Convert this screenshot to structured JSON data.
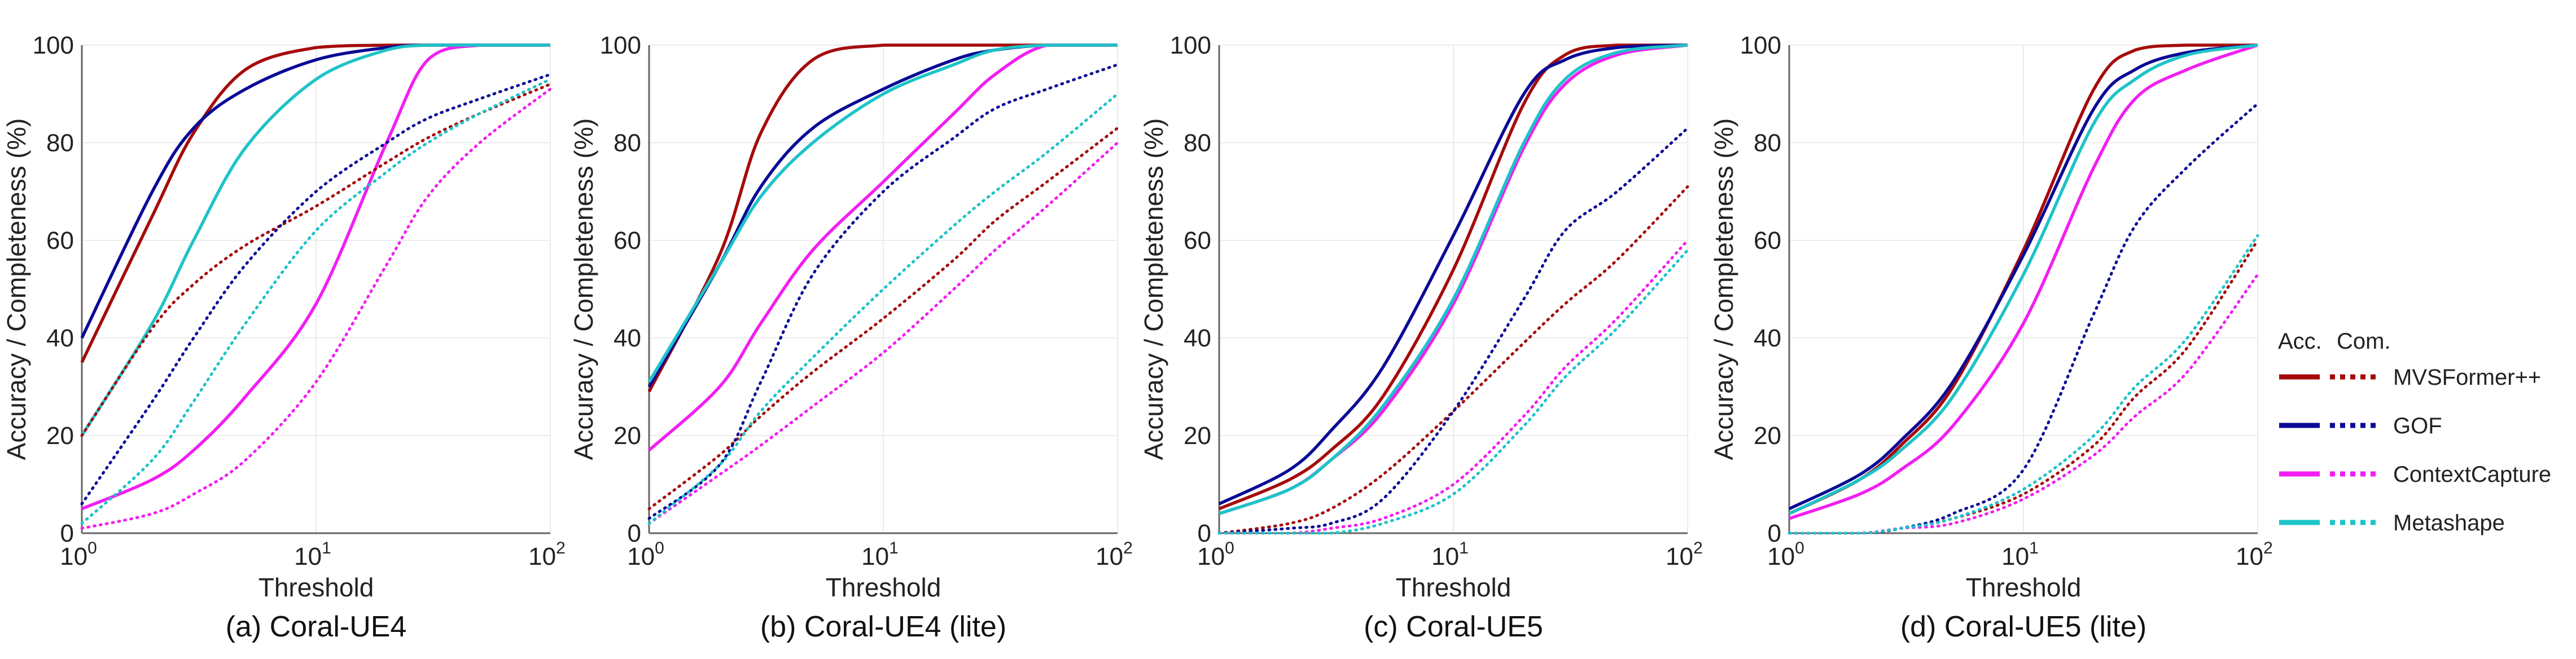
{
  "legend": {
    "header_acc": "Acc.",
    "header_com": "Com.",
    "entries": [
      "MVSFormer++",
      "GOF",
      "ContextCapture",
      "Metashape"
    ]
  },
  "colors": {
    "MVSFormer++": "#a50b0b",
    "GOF": "#0a0a96",
    "ContextCapture": "#f21ef2",
    "Metashape": "#1ec3c8",
    "grid": "#ececec",
    "axis": "#666666"
  },
  "chart_data": [
    {
      "type": "line",
      "title": "(a) Coral-UE4",
      "xlabel": "Threshold",
      "ylabel": "Accuracy / Completeness (%)",
      "xscale": "log",
      "xlim": [
        1,
        100
      ],
      "ylim": [
        0,
        100
      ],
      "xticks": [
        {
          "base": "10",
          "exp": "0"
        },
        {
          "base": "10",
          "exp": "1"
        },
        {
          "base": "10",
          "exp": "2"
        }
      ],
      "yticks": [
        "0",
        "20",
        "40",
        "60",
        "80",
        "100"
      ],
      "x": [
        1,
        2,
        3,
        5,
        10,
        20,
        30,
        50,
        100
      ],
      "series": [
        {
          "name": "MVSFormer++",
          "metric": "Acc.",
          "values": [
            35,
            65,
            82,
            95,
            99.5,
            100,
            100,
            100,
            100
          ]
        },
        {
          "name": "GOF",
          "metric": "Acc.",
          "values": [
            40,
            70,
            83,
            91,
            97,
            99.5,
            100,
            100,
            100
          ]
        },
        {
          "name": "ContextCapture",
          "metric": "Acc.",
          "values": [
            5,
            11,
            17,
            28,
            47,
            80,
            97,
            100,
            100
          ]
        },
        {
          "name": "Metashape",
          "metric": "Acc.",
          "values": [
            20,
            43,
            60,
            79,
            93,
            99,
            100,
            100,
            100
          ]
        },
        {
          "name": "MVSFormer++",
          "metric": "Com.",
          "values": [
            20,
            42,
            51,
            59,
            67,
            76,
            81,
            86,
            92
          ]
        },
        {
          "name": "GOF",
          "metric": "Com.",
          "values": [
            6,
            27,
            40,
            55,
            70,
            80,
            85,
            89,
            94
          ]
        },
        {
          "name": "ContextCapture",
          "metric": "Com.",
          "values": [
            1,
            4,
            8,
            15,
            31,
            55,
            69,
            80,
            91
          ]
        },
        {
          "name": "Metashape",
          "metric": "Com.",
          "values": [
            2,
            15,
            27,
            43,
            62,
            74,
            80,
            86,
            93
          ]
        }
      ]
    },
    {
      "type": "line",
      "title": "(b) Coral-UE4 (lite)",
      "xlabel": "Threshold",
      "ylabel": "Accuracy / Completeness (%)",
      "xscale": "log",
      "xlim": [
        1,
        100
      ],
      "ylim": [
        0,
        100
      ],
      "xticks": [
        {
          "base": "10",
          "exp": "0"
        },
        {
          "base": "10",
          "exp": "1"
        },
        {
          "base": "10",
          "exp": "2"
        }
      ],
      "yticks": [
        "0",
        "20",
        "40",
        "60",
        "80",
        "100"
      ],
      "x": [
        1,
        2,
        3,
        5,
        10,
        20,
        30,
        50,
        100
      ],
      "series": [
        {
          "name": "MVSFormer++",
          "metric": "Acc.",
          "values": [
            29,
            57,
            82,
            97,
            100,
            100,
            100,
            100,
            100
          ]
        },
        {
          "name": "GOF",
          "metric": "Acc.",
          "values": [
            30,
            55,
            71,
            83,
            91,
            97,
            99,
            100,
            100
          ]
        },
        {
          "name": "ContextCapture",
          "metric": "Acc.",
          "values": [
            17,
            30,
            43,
            58,
            72,
            86,
            94,
            100,
            100
          ]
        },
        {
          "name": "Metashape",
          "metric": "Acc.",
          "values": [
            31,
            55,
            69,
            80,
            90,
            96,
            99,
            100,
            100
          ]
        },
        {
          "name": "MVSFormer++",
          "metric": "Com.",
          "values": [
            5,
            16,
            24,
            33,
            44,
            56,
            64,
            72,
            83
          ]
        },
        {
          "name": "GOF",
          "metric": "Com.",
          "values": [
            3,
            14,
            31,
            53,
            70,
            81,
            87,
            91,
            96
          ]
        },
        {
          "name": "ContextCapture",
          "metric": "Com.",
          "values": [
            2,
            12,
            18,
            26,
            37,
            50,
            58,
            67,
            80
          ]
        },
        {
          "name": "Metashape",
          "metric": "Com.",
          "values": [
            2,
            14,
            25,
            36,
            50,
            63,
            70,
            78,
            90
          ]
        }
      ]
    },
    {
      "type": "line",
      "title": "(c) Coral-UE5",
      "xlabel": "Threshold",
      "ylabel": "Accuracy / Completeness (%)",
      "xscale": "log",
      "xlim": [
        1,
        100
      ],
      "ylim": [
        0,
        100
      ],
      "xticks": [
        {
          "base": "10",
          "exp": "0"
        },
        {
          "base": "10",
          "exp": "1"
        },
        {
          "base": "10",
          "exp": "2"
        }
      ],
      "yticks": [
        "0",
        "20",
        "40",
        "60",
        "80",
        "100"
      ],
      "x": [
        1,
        2,
        3,
        5,
        10,
        20,
        30,
        50,
        100
      ],
      "series": [
        {
          "name": "MVSFormer++",
          "metric": "Acc.",
          "values": [
            5,
            11,
            17,
            28,
            54,
            88,
            98,
            100,
            100
          ]
        },
        {
          "name": "GOF",
          "metric": "Acc.",
          "values": [
            6,
            13,
            21,
            34,
            61,
            90,
            97,
            99.5,
            100
          ]
        },
        {
          "name": "ContextCapture",
          "metric": "Acc.",
          "values": [
            4,
            9,
            15,
            25,
            47,
            79,
            92,
            98,
            100
          ]
        },
        {
          "name": "Metashape",
          "metric": "Acc.",
          "values": [
            4,
            9,
            15,
            26,
            48,
            80,
            93,
            98.5,
            100
          ]
        },
        {
          "name": "MVSFormer++",
          "metric": "Com.",
          "values": [
            0,
            2,
            5,
            12,
            25,
            39,
            47,
            56,
            71
          ]
        },
        {
          "name": "GOF",
          "metric": "Com.",
          "values": [
            0,
            1,
            2,
            7,
            25,
            48,
            62,
            70,
            83
          ]
        },
        {
          "name": "ContextCapture",
          "metric": "Com.",
          "values": [
            0,
            0,
            1,
            3,
            10,
            24,
            34,
            44,
            60
          ]
        },
        {
          "name": "Metashape",
          "metric": "Com.",
          "values": [
            0,
            0,
            0,
            2,
            8,
            22,
            32,
            42,
            58
          ]
        }
      ]
    },
    {
      "type": "line",
      "title": "(d) Coral-UE5 (lite)",
      "xlabel": "Threshold",
      "ylabel": "Accuracy / Completeness (%)",
      "xscale": "log",
      "xlim": [
        1,
        100
      ],
      "ylim": [
        0,
        100
      ],
      "xticks": [
        {
          "base": "10",
          "exp": "0"
        },
        {
          "base": "10",
          "exp": "1"
        },
        {
          "base": "10",
          "exp": "2"
        }
      ],
      "yticks": [
        "0",
        "20",
        "40",
        "60",
        "80",
        "100"
      ],
      "x": [
        1,
        2,
        3,
        5,
        10,
        20,
        30,
        50,
        100
      ],
      "series": [
        {
          "name": "MVSFormer++",
          "metric": "Acc.",
          "values": [
            4,
            11,
            18,
            30,
            58,
            91,
            99,
            100,
            100
          ]
        },
        {
          "name": "GOF",
          "metric": "Acc.",
          "values": [
            5,
            12,
            19,
            31,
            57,
            87,
            95,
            98.5,
            100
          ]
        },
        {
          "name": "ContextCapture",
          "metric": "Acc.",
          "values": [
            3,
            8,
            13,
            22,
            43,
            75,
            89,
            95,
            100
          ]
        },
        {
          "name": "Metashape",
          "metric": "Acc.",
          "values": [
            4,
            11,
            17,
            28,
            53,
            84,
            93,
            98,
            100
          ]
        },
        {
          "name": "MVSFormer++",
          "metric": "Com.",
          "values": [
            0,
            0,
            1,
            3,
            8,
            18,
            28,
            38,
            60
          ]
        },
        {
          "name": "GOF",
          "metric": "Com.",
          "values": [
            0,
            0,
            1,
            4,
            13,
            45,
            63,
            75,
            88
          ]
        },
        {
          "name": "ContextCapture",
          "metric": "Com.",
          "values": [
            0,
            0,
            1,
            2,
            7,
            16,
            24,
            33,
            53
          ]
        },
        {
          "name": "Metashape",
          "metric": "Com.",
          "values": [
            0,
            0,
            1,
            3,
            9,
            20,
            30,
            40,
            61
          ]
        }
      ]
    }
  ]
}
